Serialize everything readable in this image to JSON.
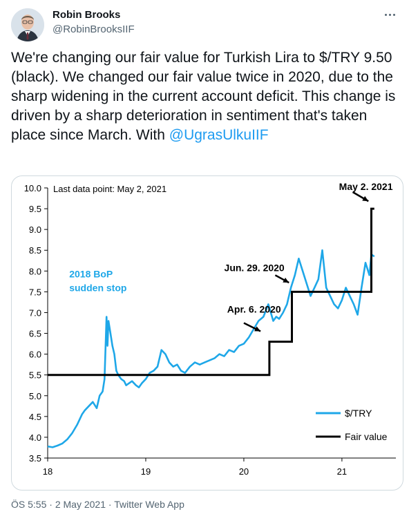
{
  "tweet": {
    "author_name": "Robin Brooks",
    "handle": "@RobinBrooksIIF",
    "text_before": "We're changing our fair value for Turkish Lira to $/TRY 9.50 (black). We changed our fair value twice in 2020, due to the sharp widening in the current account deficit. This change is driven by a sharp deterioration in sentiment that's taken place since March. With ",
    "mention": "@UgrasUlkuIIF",
    "time": "ÖS 5:55",
    "sep1": " · ",
    "date": "2 May 2021",
    "sep2": " · ",
    "app": "Twitter Web App"
  },
  "colors": {
    "series": "#1ea7e8",
    "fair_value": "#000000",
    "mention": "#1d9bf0",
    "muted": "#536471"
  },
  "icons": {
    "more": "more-dots-icon"
  },
  "chart_data": {
    "type": "line",
    "subtitle": "Last data point: May 2, 2021",
    "ylim": [
      3.5,
      10.0
    ],
    "yticks": [
      "10.0",
      "9.5",
      "9.0",
      "8.5",
      "8.0",
      "7.5",
      "7.0",
      "6.5",
      "6.0",
      "5.5",
      "5.0",
      "4.5",
      "4.0",
      "3.5"
    ],
    "xticks": [
      {
        "x": 18,
        "label": "18"
      },
      {
        "x": 19,
        "label": "19"
      },
      {
        "x": 20,
        "label": "20"
      },
      {
        "x": 21,
        "label": "21"
      }
    ],
    "xlim": [
      18.0,
      21.55
    ],
    "series": [
      {
        "name": "$/TRY",
        "color": "#1ea7e8",
        "x": [
          18.0,
          18.05,
          18.1,
          18.15,
          18.2,
          18.25,
          18.3,
          18.35,
          18.38,
          18.42,
          18.46,
          18.5,
          18.53,
          18.56,
          18.58,
          18.6,
          18.61,
          18.62,
          18.64,
          18.66,
          18.68,
          18.7,
          18.72,
          18.75,
          18.78,
          18.8,
          18.83,
          18.86,
          18.9,
          18.93,
          18.96,
          19.0,
          19.04,
          19.08,
          19.12,
          19.16,
          19.2,
          19.24,
          19.28,
          19.32,
          19.36,
          19.4,
          19.45,
          19.5,
          19.55,
          19.6,
          19.65,
          19.7,
          19.75,
          19.8,
          19.85,
          19.9,
          19.95,
          20.0,
          20.05,
          20.1,
          20.15,
          20.2,
          20.25,
          20.3,
          20.33,
          20.36,
          20.4,
          20.44,
          20.48,
          20.52,
          20.56,
          20.6,
          20.64,
          20.68,
          20.72,
          20.76,
          20.8,
          20.84,
          20.88,
          20.92,
          20.96,
          21.0,
          21.04,
          21.08,
          21.12,
          21.16,
          21.2,
          21.24,
          21.28,
          21.3,
          21.33
        ],
        "values": [
          3.78,
          3.76,
          3.8,
          3.85,
          3.95,
          4.1,
          4.3,
          4.55,
          4.65,
          4.75,
          4.85,
          4.7,
          5.0,
          5.1,
          5.4,
          6.9,
          6.2,
          6.8,
          6.5,
          6.2,
          6.0,
          5.6,
          5.5,
          5.4,
          5.35,
          5.25,
          5.3,
          5.35,
          5.25,
          5.2,
          5.3,
          5.4,
          5.55,
          5.6,
          5.7,
          6.1,
          6.0,
          5.8,
          5.7,
          5.75,
          5.6,
          5.55,
          5.7,
          5.8,
          5.75,
          5.8,
          5.85,
          5.9,
          6.0,
          5.95,
          6.1,
          6.05,
          6.2,
          6.25,
          6.4,
          6.6,
          6.8,
          6.9,
          7.2,
          6.8,
          6.9,
          6.85,
          7.0,
          7.2,
          7.6,
          7.9,
          8.3,
          8.0,
          7.7,
          7.4,
          7.6,
          7.8,
          8.5,
          7.6,
          7.4,
          7.2,
          7.1,
          7.3,
          7.6,
          7.4,
          7.2,
          6.95,
          7.6,
          8.2,
          7.9,
          8.4,
          8.35
        ]
      },
      {
        "name": "Fair value",
        "color": "#000000",
        "x": [
          18.0,
          20.26,
          20.26,
          20.49,
          20.49,
          21.3,
          21.3,
          21.33
        ],
        "values": [
          5.5,
          5.5,
          6.3,
          6.3,
          7.5,
          7.5,
          9.5,
          9.5
        ]
      }
    ],
    "annotations": [
      {
        "text_lines": [
          "2018 BoP",
          "sudden stop"
        ],
        "color": "#1ea7e8",
        "x": 18.22,
        "y": 7.85
      },
      {
        "text_lines": [
          "Apr. 6. 2020"
        ],
        "color": "#000000",
        "x": 19.83,
        "y": 7.0
      },
      {
        "text_lines": [
          "Jun. 29. 2020"
        ],
        "color": "#000000",
        "x": 19.8,
        "y": 8.0
      },
      {
        "text_lines": [
          "May 2. 2021"
        ],
        "color": "#000000",
        "x": 20.97,
        "y": 9.95
      }
    ],
    "arrows": [
      {
        "from": [
          20.0,
          6.75
        ],
        "to": [
          20.17,
          6.55
        ]
      },
      {
        "from": [
          20.32,
          7.9
        ],
        "to": [
          20.46,
          7.72
        ]
      },
      {
        "from": [
          21.11,
          9.9
        ],
        "to": [
          21.27,
          9.68
        ]
      }
    ],
    "legend": {
      "placement": "bottom-right",
      "entries": [
        "$/TRY",
        "Fair value"
      ]
    }
  }
}
